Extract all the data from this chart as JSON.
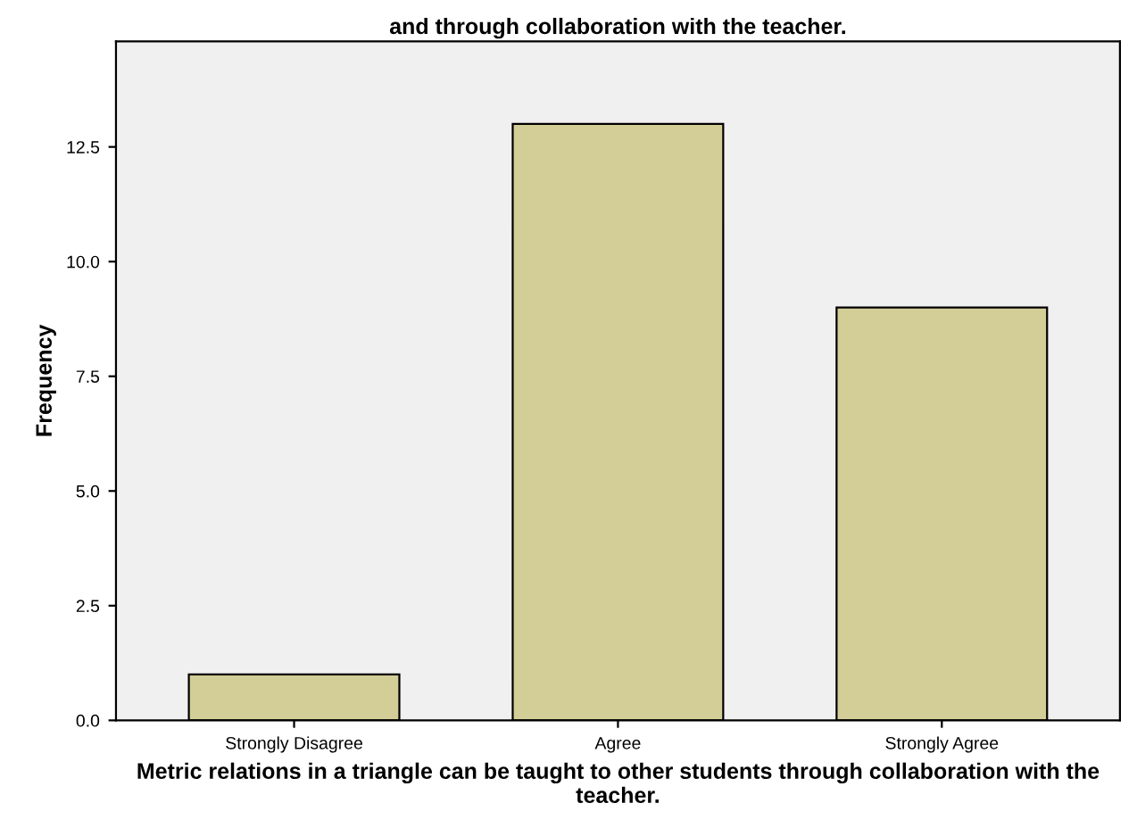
{
  "chart_data": {
    "type": "bar",
    "title": "and through collaboration with the teacher.",
    "xlabel": "Metric relations in a triangle can be taught to other students through collaboration with the teacher.",
    "ylabel": "Frequency",
    "categories": [
      "Strongly Disagree",
      "Agree",
      "Strongly Agree"
    ],
    "values": [
      1,
      13,
      9
    ],
    "color": "#d3ce97",
    "ylim": [
      0,
      14.8
    ],
    "yticks": [
      {
        "value": 0,
        "label": "0.0"
      },
      {
        "value": 2.5,
        "label": "2.5"
      },
      {
        "value": 5,
        "label": "5.0"
      },
      {
        "value": 7.5,
        "label": "7.5"
      },
      {
        "value": 10,
        "label": "10.0"
      },
      {
        "value": 12.5,
        "label": "12.5"
      }
    ],
    "grid": false
  }
}
